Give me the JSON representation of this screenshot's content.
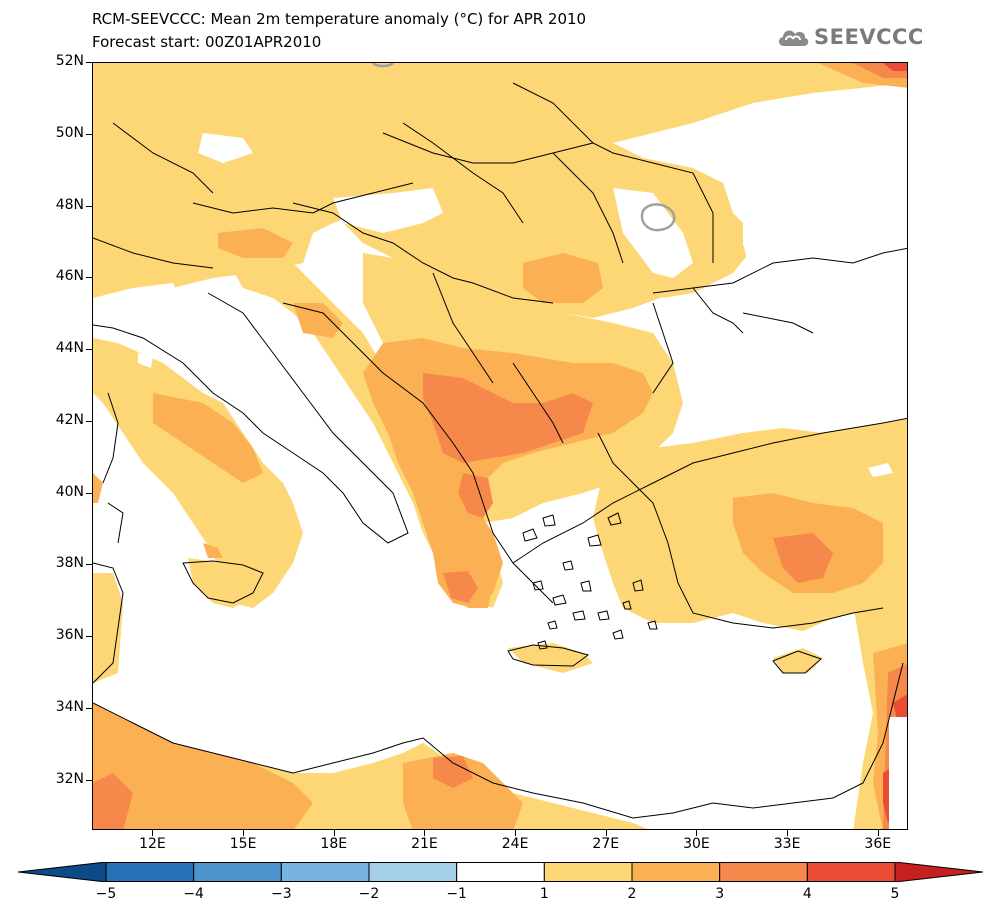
{
  "header": {
    "title_line1": "RCM-SEEVCCC: Mean 2m temperature anomaly (°C) for APR 2010",
    "title_line2": "Forecast start: 00Z01APR2010",
    "logo_text": "SEEVCCC",
    "logo_icon": "cloud-icon"
  },
  "map": {
    "lat_labels": [
      "52N",
      "50N",
      "48N",
      "46N",
      "44N",
      "42N",
      "40N",
      "38N",
      "36N",
      "34N",
      "32N"
    ],
    "lon_labels": [
      "12E",
      "15E",
      "18E",
      "21E",
      "24E",
      "27E",
      "30E",
      "33E",
      "36E"
    ],
    "lat_range": [
      30.6,
      52.0
    ],
    "lon_range": [
      10.0,
      37.0
    ],
    "colors": {
      "anom_1_2": "#fdd775",
      "anom_2_3": "#fbb153",
      "anom_3_4": "#f5884a",
      "anom_4_5": "#ea4d33",
      "sea": "#ffffff",
      "border_line": "#000000"
    }
  },
  "colorbar": {
    "labels": [
      "−5",
      "−4",
      "−3",
      "−2",
      "−1",
      "1",
      "2",
      "3",
      "4",
      "5"
    ],
    "colors": [
      "#0c4a8a",
      "#2671b5",
      "#4d94cf",
      "#79b3df",
      "#a5cfe8",
      "#ffffff",
      "#fdd775",
      "#fbb153",
      "#f5884a",
      "#ea4d33",
      "#c81f1f"
    ]
  }
}
